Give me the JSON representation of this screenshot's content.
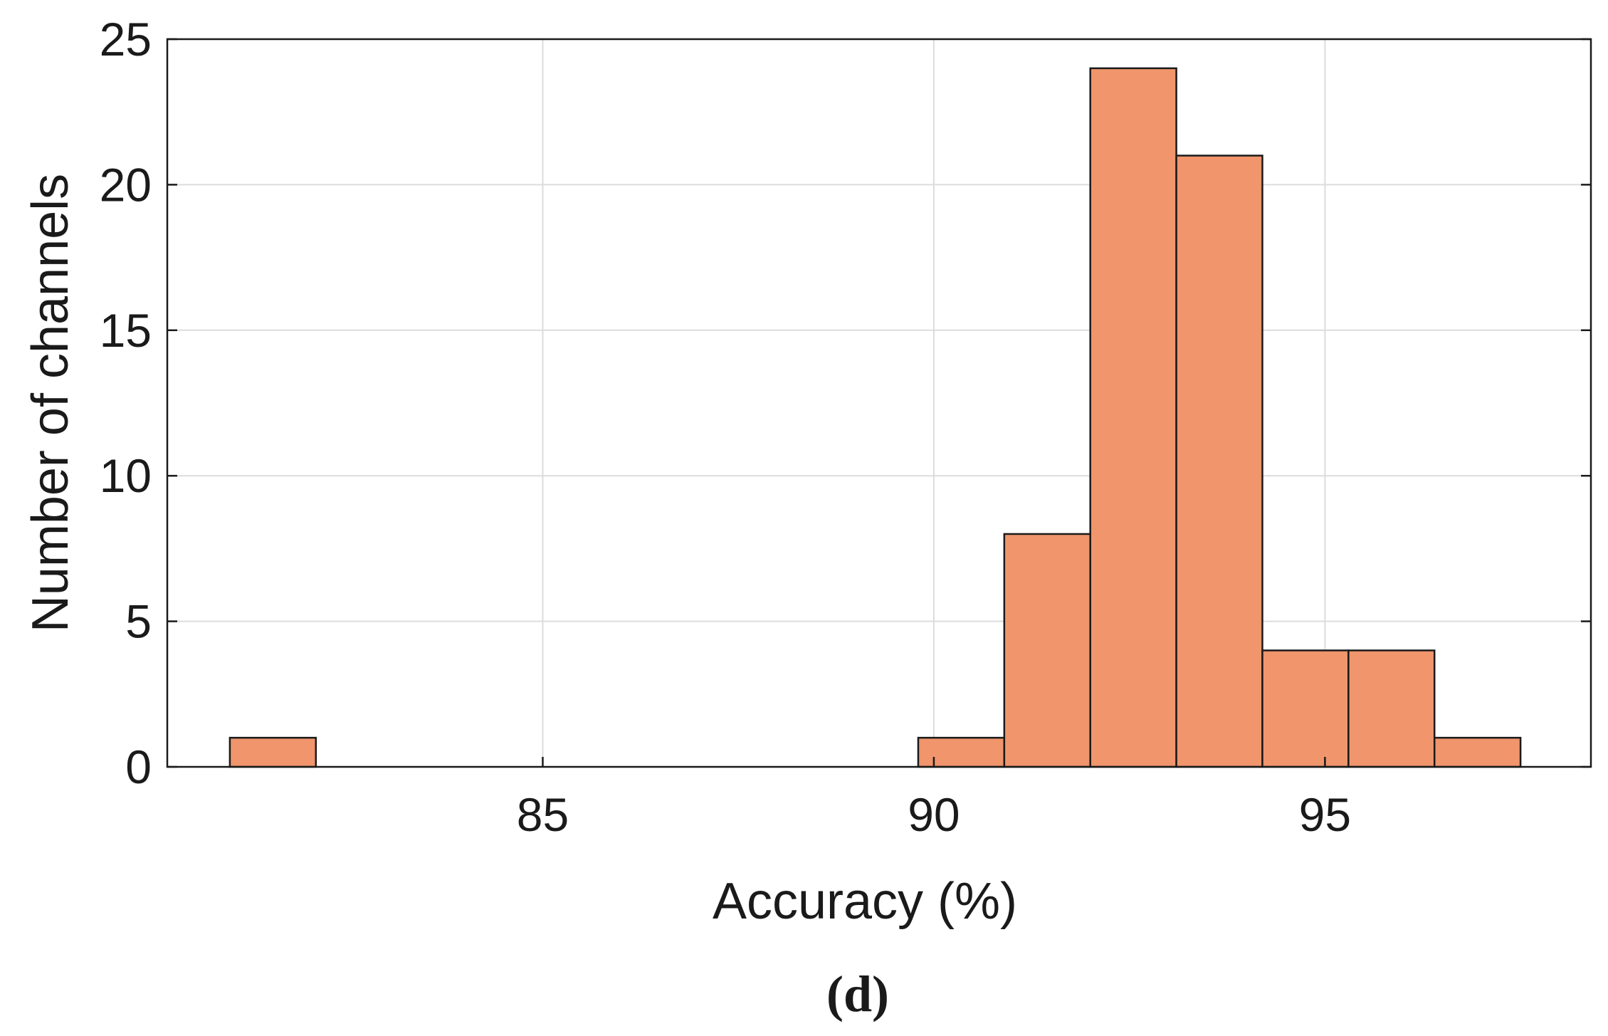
{
  "chart_data": {
    "type": "bar",
    "bin_edges": [
      81.0,
      82.1,
      83.2,
      84.3,
      85.4,
      86.5,
      87.6,
      88.7,
      89.8,
      90.9,
      92.0,
      93.1,
      94.2,
      95.3,
      96.4,
      97.5
    ],
    "values": [
      1,
      0,
      0,
      0,
      0,
      0,
      0,
      0,
      1,
      8,
      24,
      21,
      4,
      4,
      1
    ],
    "xlim": [
      80.2,
      98.4
    ],
    "ylim": [
      0,
      25
    ],
    "xticks": [
      85,
      90,
      95
    ],
    "yticks": [
      0,
      5,
      10,
      15,
      20,
      25
    ],
    "xlabel": "Accuracy (%)",
    "ylabel": "Number of channels",
    "panel_label": "(d)",
    "grid": true,
    "bar_color": "#f0956c",
    "bar_edge_color": "#1a1a1a",
    "grid_color": "#dcdcdc"
  }
}
